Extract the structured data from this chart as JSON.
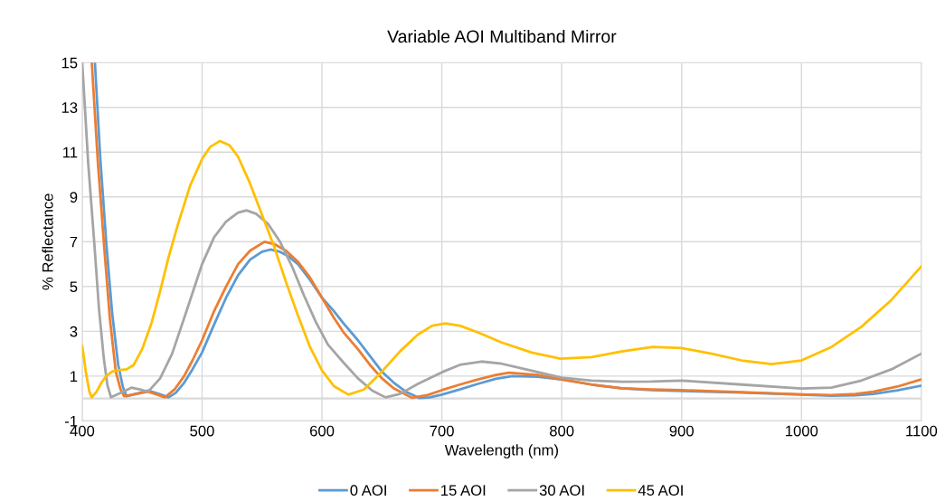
{
  "chart_data": {
    "type": "line",
    "title": "Variable AOI Multiband Mirror",
    "xlabel": "Wavelength (nm)",
    "ylabel": "% Reflectance",
    "xlim": [
      400,
      1100
    ],
    "xticks": [
      400,
      500,
      600,
      700,
      800,
      900,
      1000,
      1100
    ],
    "ylim": [
      -1,
      15
    ],
    "yticks": [
      -1,
      1,
      3,
      5,
      7,
      9,
      11,
      13,
      15
    ],
    "grid": true,
    "legend": "bottom",
    "marker": "none",
    "line_style": "solid",
    "ref_lines": [
      {
        "axis": "y",
        "value": 0,
        "color": "#d9d9d9"
      }
    ],
    "series": [
      {
        "name": "0 AOI",
        "color": "#5b9bd5",
        "x": [
          410.6,
          415,
          420,
          425,
          430,
          434,
          437,
          446,
          455,
          464,
          472,
          478,
          485,
          492,
          500,
          510,
          520,
          530,
          540,
          550,
          557,
          565,
          572,
          580,
          590,
          600,
          610,
          618,
          630,
          640,
          650,
          660,
          670,
          681,
          690,
          700,
          715,
          730,
          745,
          759,
          780,
          800,
          825,
          850,
          875,
          900,
          950,
          1000,
          1025,
          1045,
          1060,
          1080,
          1100
        ],
        "values": [
          15,
          10.8,
          7,
          3.8,
          1.5,
          0.5,
          0.1,
          0.22,
          0.35,
          0.2,
          0.05,
          0.25,
          0.7,
          1.3,
          2.06,
          3.3,
          4.5,
          5.5,
          6.2,
          6.55,
          6.65,
          6.55,
          6.35,
          6.0,
          5.3,
          4.5,
          3.9,
          3.35,
          2.6,
          1.9,
          1.2,
          0.7,
          0.3,
          0.02,
          0.05,
          0.17,
          0.4,
          0.65,
          0.88,
          1.0,
          0.97,
          0.85,
          0.62,
          0.45,
          0.37,
          0.33,
          0.26,
          0.17,
          0.12,
          0.14,
          0.2,
          0.36,
          0.57
        ]
      },
      {
        "name": "15 AOI",
        "color": "#ed7d31",
        "x": [
          408,
          413,
          418,
          423,
          428,
          432,
          435,
          445,
          455,
          462,
          469,
          477,
          485,
          492,
          500,
          510,
          520,
          530,
          540,
          552,
          560,
          570,
          580,
          590,
          600,
          610,
          618,
          630,
          640,
          650,
          660,
          675,
          688,
          700,
          715,
          730,
          745,
          756,
          780,
          800,
          825,
          850,
          875,
          900,
          950,
          1000,
          1025,
          1045,
          1060,
          1080,
          1100
        ],
        "values": [
          15,
          10.6,
          7,
          3.6,
          1.2,
          0.4,
          0.1,
          0.2,
          0.3,
          0.18,
          0.05,
          0.4,
          1.0,
          1.7,
          2.6,
          3.9,
          5.0,
          6.0,
          6.6,
          7.0,
          6.9,
          6.6,
          6.1,
          5.4,
          4.5,
          3.6,
          2.95,
          2.2,
          1.5,
          0.9,
          0.45,
          0.03,
          0.15,
          0.37,
          0.62,
          0.85,
          1.05,
          1.15,
          1.05,
          0.85,
          0.62,
          0.45,
          0.4,
          0.37,
          0.28,
          0.18,
          0.15,
          0.2,
          0.3,
          0.53,
          0.85
        ]
      },
      {
        "name": "30 AOI",
        "color": "#a5a5a5",
        "x": [
          400,
          405,
          410,
          414,
          418,
          421,
          424,
          432,
          441,
          448,
          455,
          465,
          475,
          487,
          500,
          510,
          520,
          530,
          537,
          545,
          555,
          565,
          575,
          585,
          595,
          605,
          618,
          630,
          642,
          653,
          665,
          680,
          700,
          715,
          733,
          750,
          770,
          800,
          825,
          850,
          875,
          900,
          950,
          1000,
          1025,
          1050,
          1075,
          1100
        ],
        "values": [
          15,
          10.5,
          7,
          4.0,
          1.8,
          0.6,
          0.05,
          0.25,
          0.48,
          0.4,
          0.3,
          0.9,
          2.0,
          3.9,
          6.0,
          7.2,
          7.9,
          8.3,
          8.4,
          8.25,
          7.8,
          7.0,
          5.9,
          4.6,
          3.4,
          2.4,
          1.6,
          0.9,
          0.35,
          0.05,
          0.2,
          0.65,
          1.17,
          1.5,
          1.65,
          1.55,
          1.3,
          0.93,
          0.8,
          0.75,
          0.76,
          0.8,
          0.62,
          0.44,
          0.48,
          0.8,
          1.3,
          2.0
        ]
      },
      {
        "name": "45 AOI",
        "color": "#ffc000",
        "x": [
          400,
          403,
          406,
          408,
          412,
          416,
          420,
          425,
          429,
          437,
          443,
          450,
          458,
          465,
          472,
          480,
          490,
          500,
          507,
          515,
          523,
          530,
          540,
          550,
          560,
          570,
          580,
          590,
          600,
          610,
          622,
          635,
          650,
          665,
          680,
          692,
          703,
          715,
          730,
          750,
          775,
          799,
          825,
          850,
          876,
          900,
          925,
          950,
          975,
          1000,
          1025,
          1050,
          1075,
          1100
        ],
        "values": [
          2.35,
          1.2,
          0.3,
          0.05,
          0.3,
          0.7,
          1.0,
          1.2,
          1.25,
          1.3,
          1.5,
          2.2,
          3.4,
          4.8,
          6.3,
          7.8,
          9.5,
          10.7,
          11.25,
          11.5,
          11.3,
          10.8,
          9.6,
          8.2,
          6.8,
          5.2,
          3.7,
          2.3,
          1.25,
          0.55,
          0.17,
          0.4,
          1.2,
          2.1,
          2.85,
          3.25,
          3.35,
          3.25,
          2.95,
          2.5,
          2.05,
          1.78,
          1.85,
          2.1,
          2.3,
          2.25,
          2.0,
          1.7,
          1.53,
          1.7,
          2.3,
          3.2,
          4.4,
          5.9
        ]
      }
    ]
  }
}
